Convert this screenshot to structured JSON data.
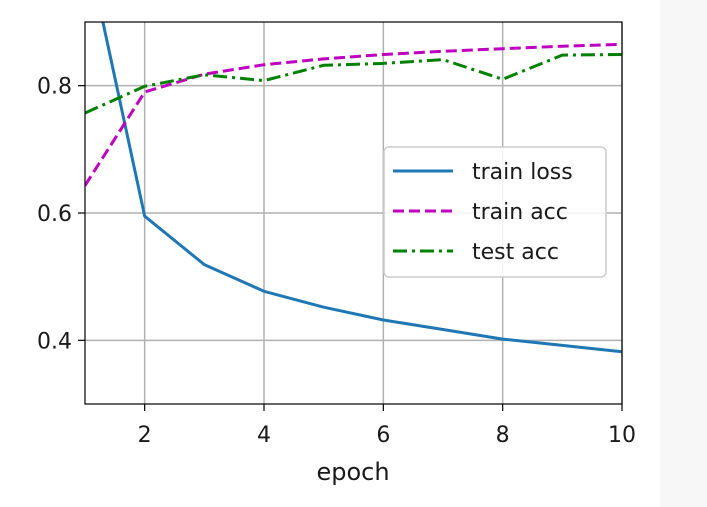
{
  "chart_data": {
    "type": "line",
    "xlabel": "epoch",
    "ylabel": "",
    "xlim": [
      1,
      10
    ],
    "ylim": [
      0.3,
      0.9
    ],
    "x_ticks": [
      2,
      4,
      6,
      8,
      10
    ],
    "y_ticks": [
      0.4,
      0.6,
      0.8
    ],
    "x_tick_labels": [
      "2",
      "4",
      "6",
      "8",
      "10"
    ],
    "y_tick_labels": [
      "0.4",
      "0.6",
      "0.8"
    ],
    "grid": true,
    "legend_position": "center-right",
    "series": [
      {
        "name": "train loss",
        "color": "#1f77b4",
        "dash": "solid",
        "points": [
          [
            1.3,
            0.9
          ],
          [
            2,
            0.595
          ],
          [
            3,
            0.519
          ],
          [
            4,
            0.477
          ],
          [
            5,
            0.452
          ],
          [
            6,
            0.432
          ],
          [
            7,
            0.417
          ],
          [
            8,
            0.402
          ],
          [
            9,
            0.392
          ],
          [
            10,
            0.382
          ]
        ]
      },
      {
        "name": "train acc",
        "color": "#bf00bf",
        "dash": "dashed",
        "points": [
          [
            1,
            0.643
          ],
          [
            2,
            0.79
          ],
          [
            3,
            0.818
          ],
          [
            4,
            0.833
          ],
          [
            5,
            0.842
          ],
          [
            6,
            0.849
          ],
          [
            7,
            0.854
          ],
          [
            8,
            0.858
          ],
          [
            9,
            0.862
          ],
          [
            10,
            0.865
          ]
        ]
      },
      {
        "name": "test acc",
        "color": "#008000",
        "dash": "dashdot",
        "points": [
          [
            1,
            0.757
          ],
          [
            2,
            0.799
          ],
          [
            3,
            0.817
          ],
          [
            4,
            0.808
          ],
          [
            5,
            0.832
          ],
          [
            6,
            0.835
          ],
          [
            7,
            0.841
          ],
          [
            8,
            0.81
          ],
          [
            9,
            0.848
          ],
          [
            10,
            0.849
          ]
        ]
      }
    ]
  }
}
